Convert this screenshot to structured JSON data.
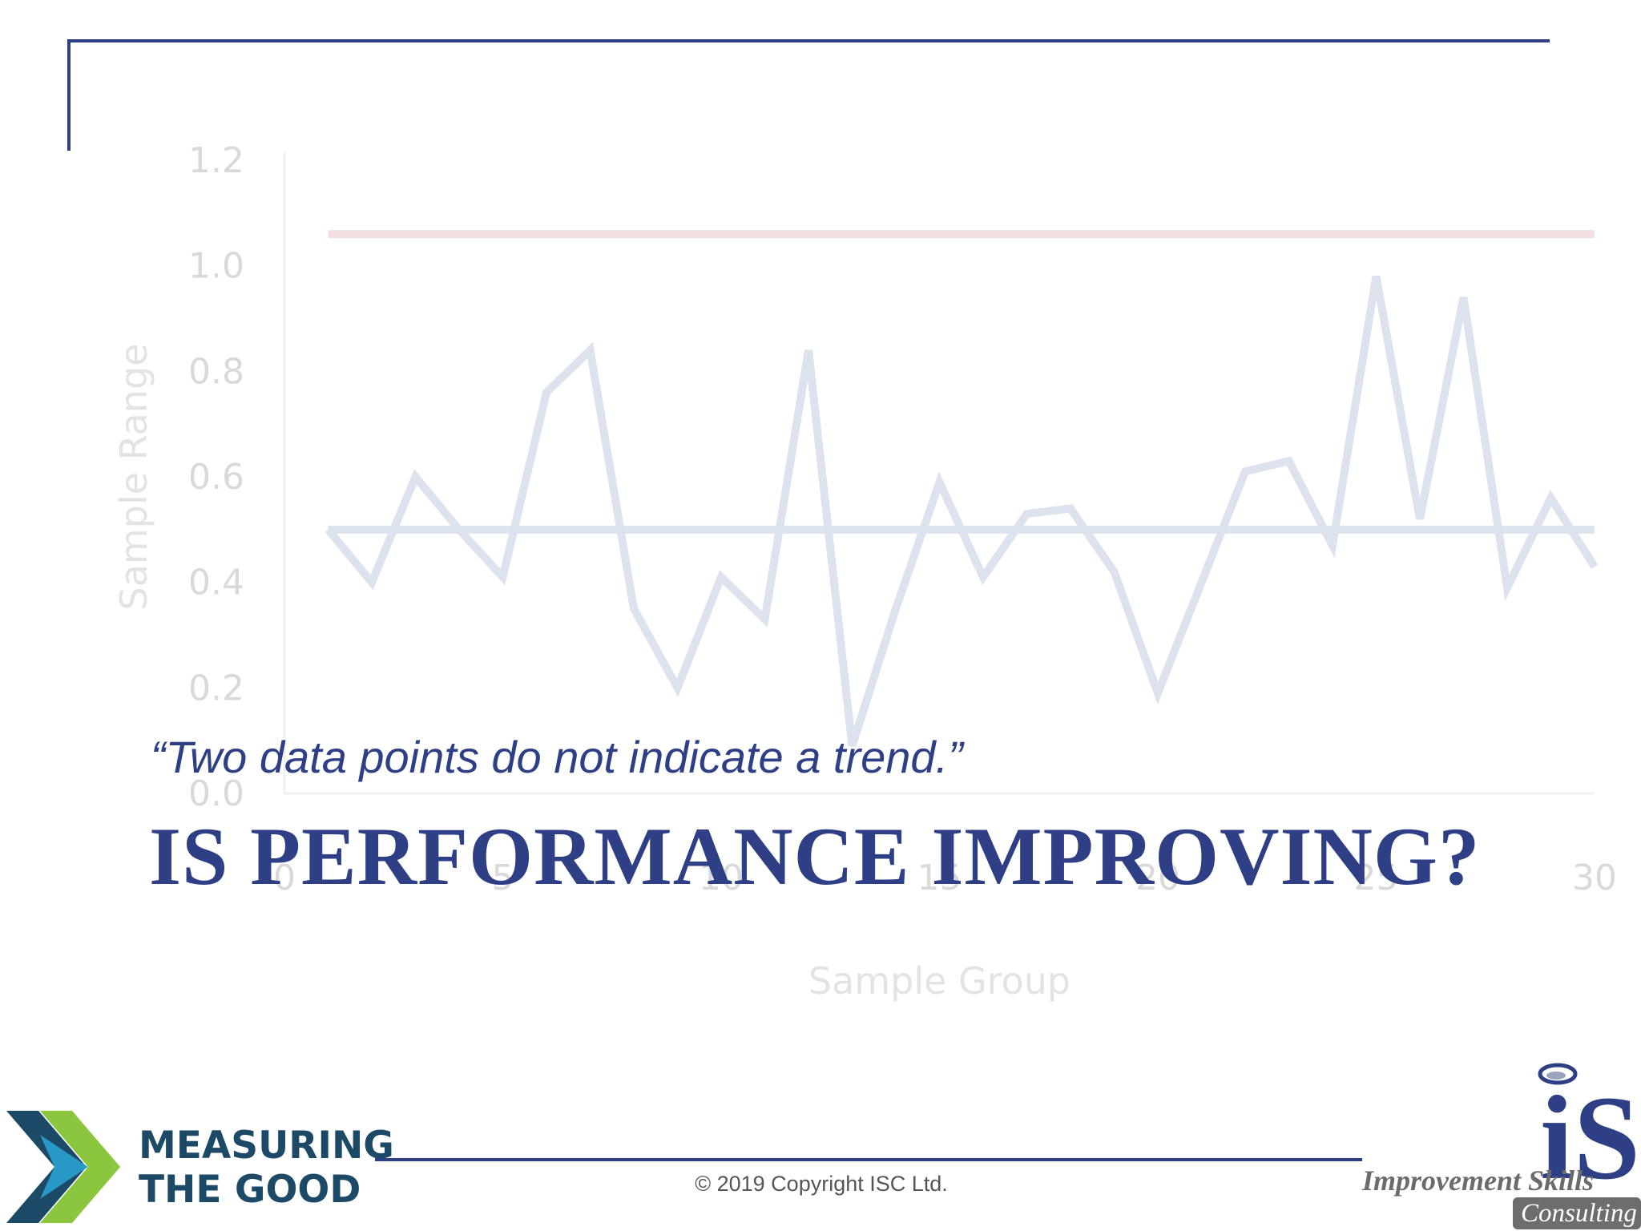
{
  "slide": {
    "quote": "“Two data points do not indicate a trend.”",
    "title": "IS PERFORMANCE IMPROVING?",
    "copyright": "© 2019 Copyright ISC Ltd."
  },
  "logos": {
    "measuring_the_good": {
      "line1": "MEASURING",
      "line2": "THE GOOD"
    },
    "isc": {
      "mark": "iS",
      "line1": "Improvement Skills",
      "line2": "Consulting"
    }
  },
  "chart_data": {
    "type": "line",
    "xlabel": "Sample Group",
    "ylabel": "Sample Range",
    "xlim": [
      1,
      30
    ],
    "ylim": [
      0,
      1.2
    ],
    "x_ticks": [
      "0",
      "5",
      "10",
      "15",
      "20",
      "25",
      "30"
    ],
    "y_ticks": [
      "0.0",
      "0.2",
      "0.4",
      "0.6",
      "0.8",
      "1.0",
      "1.2"
    ],
    "x": [
      1,
      2,
      3,
      4,
      5,
      6,
      7,
      8,
      9,
      10,
      11,
      12,
      13,
      14,
      15,
      16,
      17,
      18,
      19,
      20,
      21,
      22,
      23,
      24,
      25,
      26,
      27,
      28,
      29,
      30
    ],
    "series": [
      {
        "values": [
          0.5,
          0.4,
          0.6,
          0.5,
          0.41,
          0.76,
          0.84,
          0.35,
          0.2,
          0.41,
          0.33,
          0.84,
          0.09,
          0.35,
          0.59,
          0.41,
          0.53,
          0.54,
          0.42,
          0.19,
          0.4,
          0.61,
          0.63,
          0.47,
          0.98,
          0.52,
          0.94,
          0.39,
          0.56,
          0.43
        ],
        "color": "#dce3ef"
      }
    ],
    "reference_lines": [
      {
        "y": 0.5,
        "color": "#dde3ef"
      },
      {
        "y": 1.06,
        "color": "#f3dfe2"
      }
    ],
    "grid": false,
    "legend": "none"
  }
}
